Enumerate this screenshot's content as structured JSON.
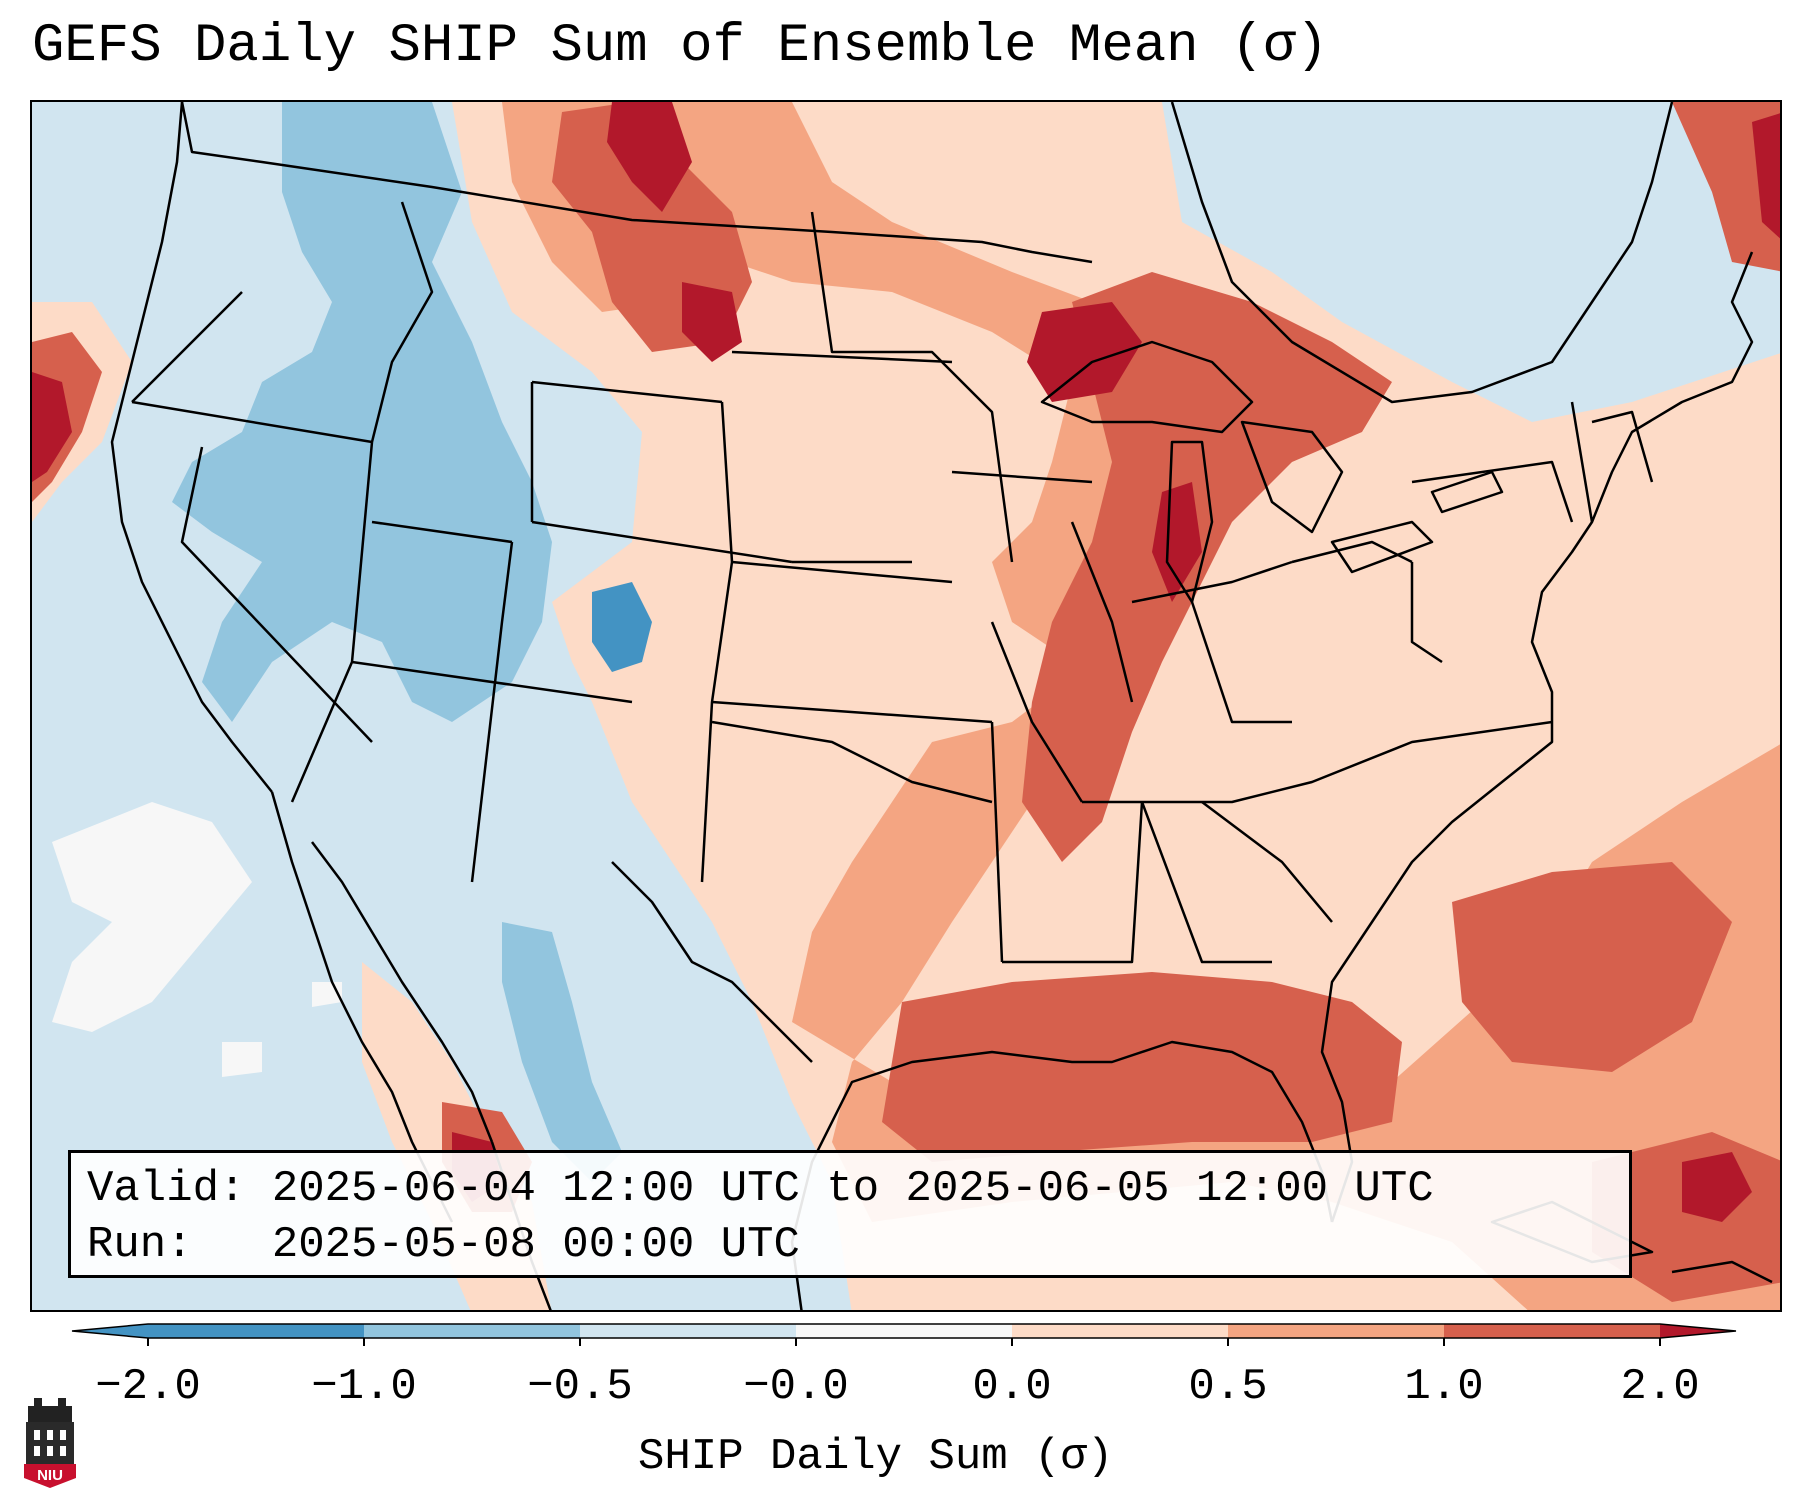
{
  "title": "GEFS Daily SHIP Sum of Ensemble Mean (σ)",
  "info": {
    "valid_label": "Valid:",
    "valid_value": "2025-06-04 12:00 UTC to 2025-06-05 12:00 UTC",
    "run_label": "Run:",
    "run_value": "2025-05-08 00:00 UTC"
  },
  "colorbar": {
    "label": "SHIP Daily Sum (σ)",
    "ticks": [
      "−2.0",
      "−1.0",
      "−0.5",
      "−0.0",
      "0.0",
      "0.5",
      "1.0",
      "2.0"
    ],
    "colors": [
      "#4393c3",
      "#92c5de",
      "#d1e5f0",
      "#f7f7f7",
      "#fddbc7",
      "#f4a582",
      "#d6604d",
      "#b2182b"
    ],
    "extend": "both"
  },
  "logo": {
    "text": "NIU"
  }
}
